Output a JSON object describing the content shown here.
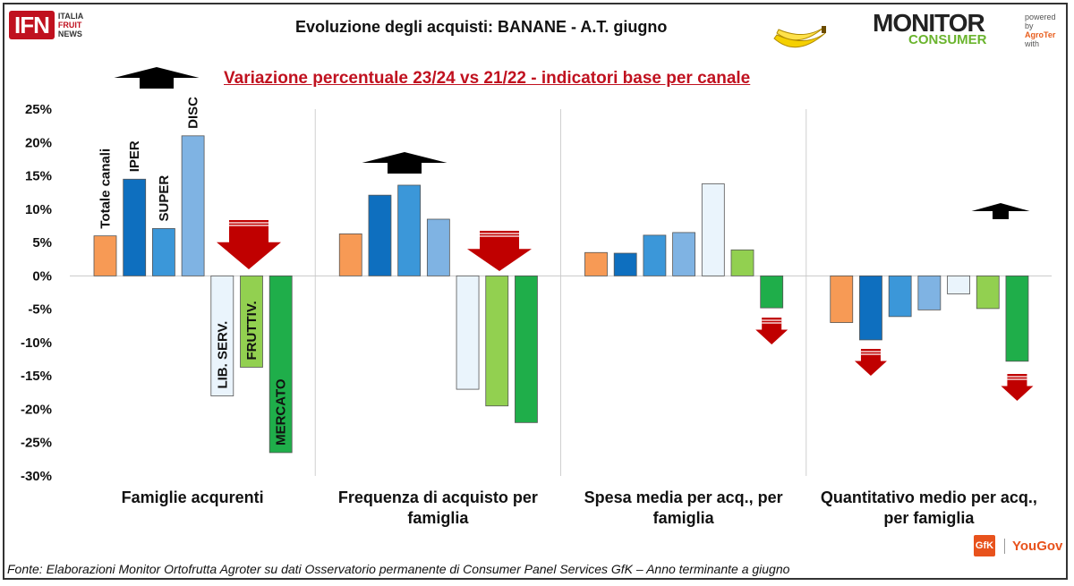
{
  "header": {
    "logo_ifn": "IFN",
    "logo_ifn_sub": [
      "ITALIA",
      "FRUIT",
      "NEWS"
    ],
    "title": "Evoluzione degli acquisti: BANANE - A.T. giugno",
    "logo_monitor": "MONITOR",
    "logo_consumer": "CONSUMER",
    "powered_by": [
      "powered by",
      "AgroTer",
      "with"
    ],
    "subtitle": "Variazione percentuale 23/24 vs 21/22 - indicatori base per canale"
  },
  "footer": {
    "source": "Fonte: Elaborazioni Monitor Ortofrutta Agroter su dati Osservatorio permanente di Consumer Panel Services GfK  – Anno terminante a giugno",
    "logo_gfk": "GfK",
    "logo_yougov": "YouGov"
  },
  "colors": {
    "Totale canali": "#f79a55",
    "IPER": "#0e6fbf",
    "SUPER": "#3b97d9",
    "DISC": "#7fb3e3",
    "LIB. SERV.": "#eaf4fc",
    "FRUTTIV.": "#92d050",
    "MERCATO": "#1fae4a",
    "arrow_up": "#000000",
    "arrow_down": "#c00000"
  },
  "chart_data": {
    "type": "bar",
    "categories": [
      [
        "Famiglie acqurenti"
      ],
      [
        "Frequenza di acquisto per",
        "famiglia"
      ],
      [
        "Spesa media per acq., per",
        "famiglia"
      ],
      [
        "Quantitativo medio per acq.,",
        "per famiglia"
      ]
    ],
    "series": [
      {
        "name": "Totale canali",
        "values": [
          6.0,
          6.3,
          3.5,
          -7.0
        ]
      },
      {
        "name": "IPER",
        "values": [
          14.5,
          12.1,
          3.4,
          -9.6
        ]
      },
      {
        "name": "SUPER",
        "values": [
          7.1,
          13.6,
          6.1,
          -6.1
        ]
      },
      {
        "name": "DISC",
        "values": [
          21.0,
          8.5,
          6.5,
          -5.1
        ]
      },
      {
        "name": "LIB. SERV.",
        "values": [
          -18.0,
          -17.0,
          13.8,
          -2.7
        ]
      },
      {
        "name": "FRUTTIV.",
        "values": [
          -13.7,
          -19.5,
          3.9,
          -4.9
        ]
      },
      {
        "name": "MERCATO",
        "values": [
          -26.5,
          -22.0,
          -4.8,
          -12.8
        ]
      }
    ],
    "series_labels_shown_in_group": 0,
    "ylim": [
      -30,
      25
    ],
    "yticks": [
      "25%",
      "20%",
      "15%",
      "10%",
      "5%",
      "0%",
      "-5%",
      "-10%",
      "-15%",
      "-20%",
      "-25%",
      "-30%"
    ],
    "ytick_values": [
      25,
      20,
      15,
      10,
      5,
      0,
      -5,
      -10,
      -15,
      -20,
      -25,
      -30
    ],
    "grid": false,
    "arrows": [
      {
        "group": 0,
        "dir": "up",
        "near_series": "DISC"
      },
      {
        "group": 0,
        "dir": "down",
        "near_series": "FRUTTIV."
      },
      {
        "group": 1,
        "dir": "up",
        "near_series": "SUPER"
      },
      {
        "group": 1,
        "dir": "down",
        "near_series": "FRUTTIV."
      },
      {
        "group": 2,
        "dir": "down",
        "near_series": "MERCATO"
      },
      {
        "group": 3,
        "dir": "down",
        "near_series": "IPER"
      },
      {
        "group": 3,
        "dir": "up",
        "near_series": "MERCATO"
      },
      {
        "group": 3,
        "dir": "down",
        "near_series": "MERCATO"
      }
    ]
  }
}
